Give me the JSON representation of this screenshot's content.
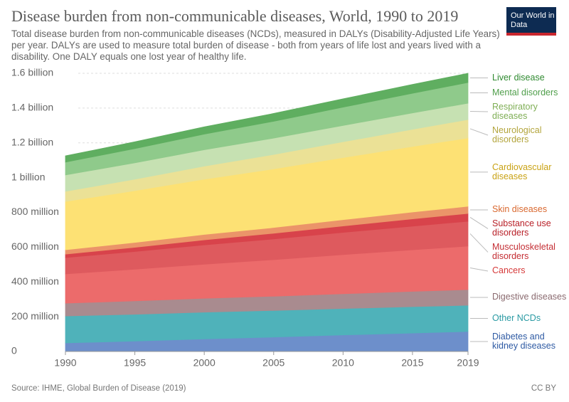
{
  "logo": "Our World in Data",
  "license": "CC BY",
  "chart_data": {
    "type": "stacked-area",
    "title": "Disease burden from non-communicable diseases, World, 1990 to 2019",
    "subtitle": "Total disease burden from non-communicable diseases (NCDs), measured in DALYs (Disability-Adjusted Life Years) per year. DALYs are used to measure total burden of disease - both from years of life lost and years lived with a disability. One DALY equals one lost year of healthy life.",
    "source": "Source: IHME, Global Burden of Disease (2019)",
    "x": [
      1990,
      1995,
      2000,
      2005,
      2010,
      2015,
      2019
    ],
    "xlim": [
      1990,
      2019
    ],
    "xticks": [
      1990,
      1995,
      2000,
      2005,
      2010,
      2015,
      2019
    ],
    "ylim": [
      0,
      1600
    ],
    "yticks": [
      0,
      {
        "value": 200,
        "label": "200 million"
      },
      {
        "value": 400,
        "label": "400 million"
      },
      {
        "value": 600,
        "label": "600 million"
      },
      {
        "value": 800,
        "label": "800 million"
      },
      {
        "value": 1000,
        "label": "1 billion"
      },
      {
        "value": 1200,
        "label": "1.2 billion"
      },
      {
        "value": 1400,
        "label": "1.4 billion"
      },
      {
        "value": 1600,
        "label": "1.6 billion"
      }
    ],
    "grid": true,
    "series": [
      {
        "name": "Diabetes and kidney diseases",
        "color": "#6d8fcb",
        "label_color": "#2e5aa3",
        "values": [
          49,
          60,
          72,
          83,
          95,
          106,
          115
        ]
      },
      {
        "name": "Other NCDs",
        "color": "#4fb2ba",
        "label_color": "#2a9aa3",
        "values": [
          155,
          154,
          154,
          153,
          152,
          152,
          151
        ]
      },
      {
        "name": "Digestive diseases",
        "color": "#a98b8f",
        "label_color": "#8a6a6f",
        "values": [
          74,
          77,
          80,
          82,
          85,
          88,
          90
        ]
      },
      {
        "name": "Cancers",
        "color": "#ec6b6b",
        "label_color": "#d63a3a",
        "values": [
          168,
          182,
          196,
          210,
          225,
          239,
          250
        ]
      },
      {
        "name": "Musculoskeletal disorders",
        "color": "#de5a5e",
        "label_color": "#c42e34",
        "values": [
          94,
          102,
          111,
          119,
          128,
          136,
          143
        ]
      },
      {
        "name": "Substance use disorders",
        "color": "#d8434b",
        "label_color": "#b81f27",
        "values": [
          20,
          24,
          29,
          33,
          37,
          42,
          45
        ]
      },
      {
        "name": "Skin diseases",
        "color": "#eb9469",
        "label_color": "#d9682f",
        "values": [
          25,
          28,
          31,
          33,
          36,
          39,
          41
        ]
      },
      {
        "name": "Cardiovascular diseases",
        "color": "#fde174",
        "label_color": "#c9a214",
        "values": [
          278,
          298,
          318,
          337,
          357,
          377,
          393
        ]
      },
      {
        "name": "Neurological disorders",
        "color": "#ebe196",
        "label_color": "#b3a53c",
        "values": [
          58,
          66,
          75,
          83,
          91,
          99,
          106
        ]
      },
      {
        "name": "Respiratory diseases",
        "color": "#c6e1b2",
        "label_color": "#7fae55",
        "values": [
          94,
          94,
          94,
          94,
          94,
          94,
          94
        ]
      },
      {
        "name": "Mental disorders",
        "color": "#8fca8b",
        "label_color": "#4f9e4a",
        "values": [
          74,
          82,
          90,
          97,
          105,
          113,
          119
        ]
      },
      {
        "name": "Liver disease",
        "color": "#5fae60",
        "label_color": "#2f8a30",
        "values": [
          36,
          39,
          42,
          45,
          48,
          51,
          53
        ]
      }
    ]
  }
}
